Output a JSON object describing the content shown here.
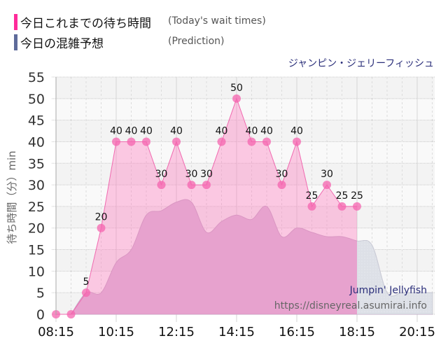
{
  "legend": {
    "actual": {
      "label_jp": "今日これまでの待ち時間",
      "label_en": "(Today's wait times)",
      "color": "#ff2a9a"
    },
    "prediction": {
      "label_jp": "今日の混雑予想",
      "label_en": "(Prediction)",
      "color": "#5e6b9a"
    }
  },
  "ride": {
    "name_jp": "ジャンピン・ジェリーフィッシュ",
    "name_en": "Jumpin' Jellyfish"
  },
  "watermark": "https://disneyreal.asumirai.info",
  "axes": {
    "ylabel": "待ち時間（分）min",
    "yticks": [
      "0",
      "5",
      "10",
      "15",
      "20",
      "25",
      "30",
      "35",
      "40",
      "45",
      "50",
      "55"
    ],
    "xticks": [
      "08:15",
      "10:15",
      "12:15",
      "14:15",
      "16:15",
      "18:15",
      "20:15"
    ]
  },
  "chart_data": {
    "type": "area",
    "title": "ジャンピン・ジェリーフィッシュ",
    "xlabel": "",
    "ylabel": "待ち時間（分）min",
    "ylim": [
      0,
      55
    ],
    "xlim": [
      "08:15",
      "20:45"
    ],
    "grid": true,
    "legend_position": "top-left",
    "x": [
      "08:15",
      "08:30",
      "08:45",
      "09:00",
      "09:15",
      "09:30",
      "09:45",
      "10:00",
      "10:15",
      "10:30",
      "10:45",
      "11:00",
      "11:15",
      "11:30",
      "11:45",
      "12:00",
      "12:15",
      "12:30",
      "12:45",
      "13:00",
      "13:15",
      "13:30",
      "13:45",
      "14:00",
      "14:15",
      "14:30",
      "14:45",
      "15:00",
      "15:15",
      "15:30",
      "15:45",
      "16:00",
      "16:15",
      "16:30",
      "16:45",
      "17:00",
      "17:15",
      "17:30",
      "17:45",
      "18:00",
      "18:15",
      "18:30",
      "18:45",
      "19:00",
      "19:15",
      "19:30",
      "19:45",
      "20:00",
      "20:15",
      "20:30",
      "20:45"
    ],
    "series": [
      {
        "name": "今日これまでの待ち時間 (Today's wait times)",
        "points": [
          {
            "x": "08:15",
            "y": 0
          },
          {
            "x": "08:45",
            "y": 0
          },
          {
            "x": "09:15",
            "y": 5
          },
          {
            "x": "09:45",
            "y": 20
          },
          {
            "x": "10:15",
            "y": 40
          },
          {
            "x": "10:45",
            "y": 40
          },
          {
            "x": "11:15",
            "y": 40
          },
          {
            "x": "11:45",
            "y": 30
          },
          {
            "x": "12:15",
            "y": 40
          },
          {
            "x": "12:45",
            "y": 30
          },
          {
            "x": "13:15",
            "y": 30
          },
          {
            "x": "13:45",
            "y": 40
          },
          {
            "x": "14:15",
            "y": 50
          },
          {
            "x": "14:45",
            "y": 40
          },
          {
            "x": "15:15",
            "y": 40
          },
          {
            "x": "15:45",
            "y": 30
          },
          {
            "x": "16:15",
            "y": 40
          },
          {
            "x": "16:45",
            "y": 25
          },
          {
            "x": "17:15",
            "y": 30
          },
          {
            "x": "17:45",
            "y": 25
          },
          {
            "x": "18:15",
            "y": 25
          }
        ],
        "data_labels": [
          "",
          "",
          "5",
          "20",
          "40",
          "40",
          "40",
          "30",
          "40",
          "30",
          "30",
          "40",
          "50",
          "40",
          "40",
          "30",
          "40",
          "25",
          "30",
          "25",
          "25"
        ]
      },
      {
        "name": "今日の混雑予想 (Prediction)",
        "points": [
          {
            "x": "08:45",
            "y": 0
          },
          {
            "x": "09:15",
            "y": 5
          },
          {
            "x": "09:45",
            "y": 5
          },
          {
            "x": "10:15",
            "y": 12
          },
          {
            "x": "10:45",
            "y": 15
          },
          {
            "x": "11:15",
            "y": 23
          },
          {
            "x": "11:45",
            "y": 24
          },
          {
            "x": "12:15",
            "y": 26
          },
          {
            "x": "12:45",
            "y": 26
          },
          {
            "x": "13:15",
            "y": 19
          },
          {
            "x": "13:45",
            "y": 21.5
          },
          {
            "x": "14:15",
            "y": 23
          },
          {
            "x": "14:45",
            "y": 22
          },
          {
            "x": "15:15",
            "y": 25
          },
          {
            "x": "15:45",
            "y": 18
          },
          {
            "x": "16:15",
            "y": 20
          },
          {
            "x": "16:45",
            "y": 19
          },
          {
            "x": "17:15",
            "y": 18
          },
          {
            "x": "17:45",
            "y": 18
          },
          {
            "x": "18:15",
            "y": 17
          },
          {
            "x": "18:45",
            "y": 16
          },
          {
            "x": "19:15",
            "y": 5
          },
          {
            "x": "19:45",
            "y": 5
          },
          {
            "x": "20:15",
            "y": 5
          },
          {
            "x": "20:45",
            "y": 5
          }
        ]
      }
    ]
  }
}
